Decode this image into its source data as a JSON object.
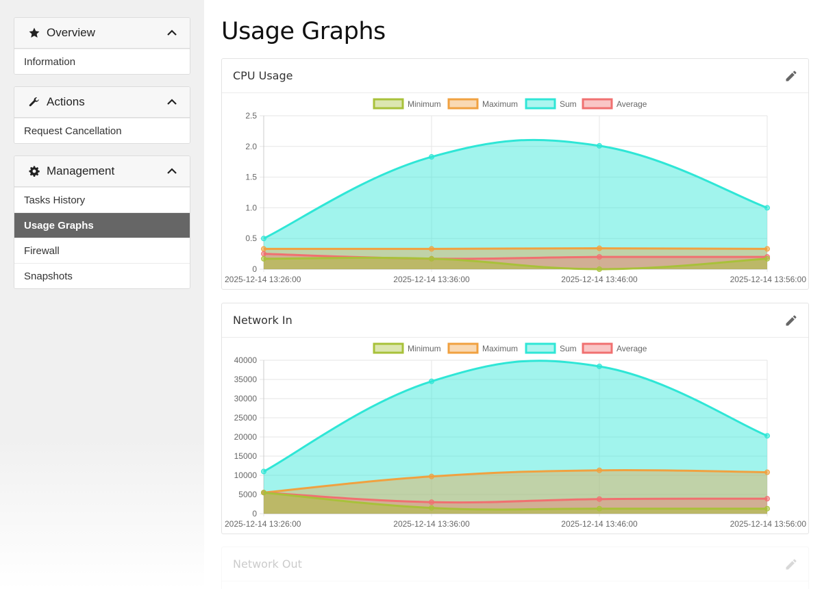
{
  "sidebar": {
    "panels": [
      {
        "title": "Overview",
        "icon": "star-icon",
        "items": [
          "Information"
        ]
      },
      {
        "title": "Actions",
        "icon": "wrench-icon",
        "items": [
          "Request Cancellation"
        ]
      },
      {
        "title": "Management",
        "icon": "gear-icon",
        "items": [
          "Tasks History",
          "Usage Graphs",
          "Firewall",
          "Snapshots"
        ],
        "active": "Usage Graphs"
      }
    ]
  },
  "page": {
    "title": "Usage Graphs"
  },
  "colors": {
    "minimum": "#a8c13a",
    "maximum": "#f0a140",
    "sum": "#2fe6d6",
    "average": "#f07070",
    "active_item": "#666666"
  },
  "cards": [
    {
      "title": "CPU Usage",
      "edit_icon": "pencil-icon"
    },
    {
      "title": "Network In",
      "edit_icon": "pencil-icon"
    },
    {
      "title": "Network Out",
      "edit_icon": "pencil-icon"
    }
  ],
  "chart_data": [
    {
      "type": "area",
      "title": "CPU Usage",
      "legend": [
        "Minimum",
        "Maximum",
        "Sum",
        "Average"
      ],
      "x": [
        "2025-12-14 13:26:00",
        "2025-12-14 13:36:00",
        "2025-12-14 13:46:00",
        "2025-12-14 13:56:00"
      ],
      "y_ticks": [
        "0",
        "0.5",
        "1.0",
        "1.5",
        "2.0",
        "2.5"
      ],
      "ylim": [
        0,
        2.5
      ],
      "series": [
        {
          "name": "Sum",
          "values": [
            0.5,
            1.83,
            2.01,
            1.0
          ]
        },
        {
          "name": "Maximum",
          "values": [
            0.33,
            0.33,
            0.34,
            0.33
          ]
        },
        {
          "name": "Average",
          "values": [
            0.25,
            0.17,
            0.2,
            0.2
          ]
        },
        {
          "name": "Minimum",
          "values": [
            0.17,
            0.17,
            0.0,
            0.17
          ]
        }
      ]
    },
    {
      "type": "area",
      "title": "Network In",
      "legend": [
        "Minimum",
        "Maximum",
        "Sum",
        "Average"
      ],
      "x": [
        "2025-12-14 13:26:00",
        "2025-12-14 13:36:00",
        "2025-12-14 13:46:00",
        "2025-12-14 13:56:00"
      ],
      "y_ticks": [
        "0",
        "5000",
        "10000",
        "15000",
        "20000",
        "25000",
        "30000",
        "35000",
        "40000"
      ],
      "ylim": [
        0,
        40000
      ],
      "series": [
        {
          "name": "Sum",
          "values": [
            11000,
            34500,
            38400,
            20300
          ]
        },
        {
          "name": "Maximum",
          "values": [
            5500,
            9700,
            11300,
            10800
          ]
        },
        {
          "name": "Average",
          "values": [
            5500,
            3000,
            3800,
            3900
          ]
        },
        {
          "name": "Minimum",
          "values": [
            5500,
            1500,
            1300,
            1300
          ]
        }
      ]
    }
  ]
}
